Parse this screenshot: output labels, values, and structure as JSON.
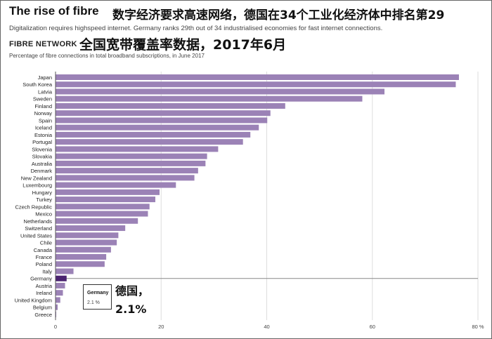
{
  "header": {
    "title_en": "The rise of fibre",
    "title_zh": "数字经济要求高速网络，德国在34个工业化经济体中排名第29",
    "subtitle": "Digitalization requires highspeed internet. Germany ranks 29th out of 34 industrialised economies for fast internet connections.",
    "section_label": "FIBRE NETWORK",
    "section_zh": "全国宽带覆盖率数据，2017年6月",
    "chart_caption": "Percentage of fibre connections in total broadband subscriptions, in June 2017"
  },
  "tooltip": {
    "name": "Germany",
    "value": "2.1 %"
  },
  "callout": {
    "line1": "德国，",
    "line2": "2.1%"
  },
  "colors": {
    "bar": "#9b82b6",
    "highlight": "#4a2370",
    "grid": "#dddddd",
    "axis": "#555555"
  },
  "chart_data": {
    "type": "bar",
    "orientation": "horizontal",
    "title": "",
    "xlabel": "",
    "ylabel": "",
    "xlim": [
      0,
      80
    ],
    "x_ticks": [
      "0",
      "20",
      "40",
      "60",
      "80 %"
    ],
    "grid": true,
    "highlight": "Germany",
    "categories": [
      "Japan",
      "South Korea",
      "Latvia",
      "Sweden",
      "Finland",
      "Norway",
      "Spain",
      "Iceland",
      "Estonia",
      "Portugal",
      "Slovenia",
      "Slovakia",
      "Australia",
      "Denmark",
      "New Zealand",
      "Luxembourg",
      "Hungary",
      "Turkey",
      "Czech Republic",
      "Mexico",
      "Netherlands",
      "Switzerland",
      "United States",
      "Chile",
      "Canada",
      "France",
      "Poland",
      "Italy",
      "Germany",
      "Austria",
      "Ireland",
      "United Kingdom",
      "Belgium",
      "Greece"
    ],
    "values": [
      76.4,
      75.8,
      62.3,
      58.1,
      43.5,
      40.7,
      40.1,
      38.5,
      36.9,
      35.5,
      30.8,
      28.7,
      28.4,
      27.0,
      26.3,
      22.8,
      19.7,
      18.9,
      17.8,
      17.5,
      15.6,
      13.2,
      11.9,
      11.6,
      10.5,
      9.6,
      9.3,
      3.4,
      2.1,
      1.8,
      1.4,
      0.9,
      0.4,
      0.1
    ]
  }
}
